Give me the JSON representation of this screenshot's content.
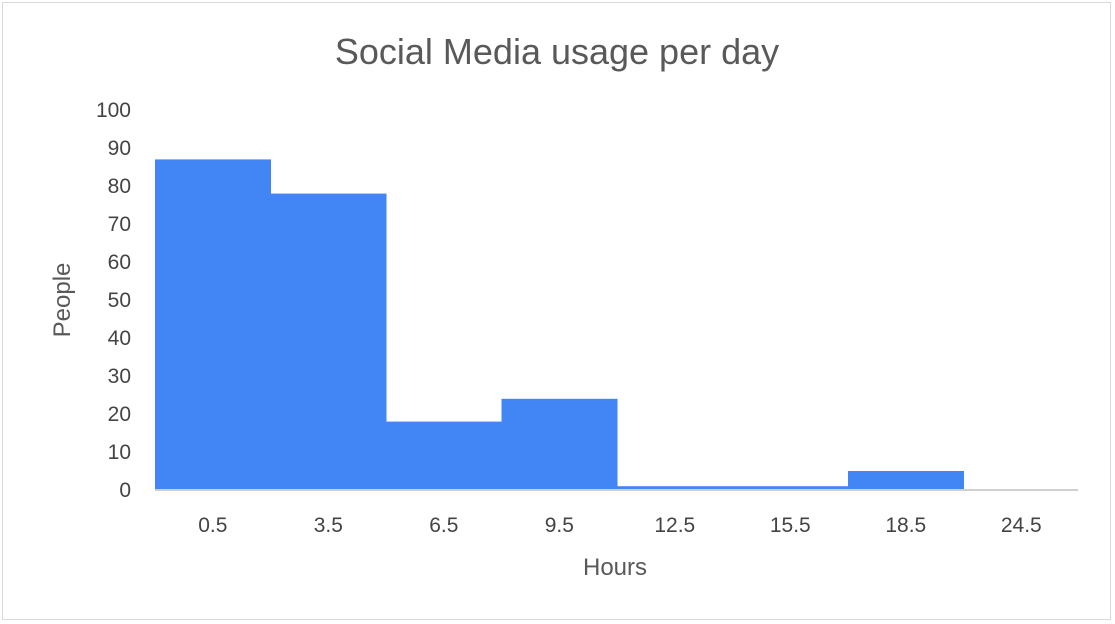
{
  "chart_data": {
    "type": "bar",
    "title": "Social Media usage per day",
    "xlabel": "Hours",
    "ylabel": "People",
    "categories": [
      "0.5",
      "3.5",
      "6.5",
      "9.5",
      "12.5",
      "15.5",
      "18.5",
      "24.5"
    ],
    "values": [
      87,
      78,
      18,
      24,
      1,
      1,
      5,
      0
    ],
    "ylim": [
      0,
      100
    ],
    "yticks": [
      0,
      10,
      20,
      30,
      40,
      50,
      60,
      70,
      80,
      90,
      100
    ],
    "grid": false,
    "legend": "none",
    "bar_gap": "none"
  },
  "colors": {
    "bar": "#4285f4",
    "axis": "#d0d0d0",
    "title": "#595959",
    "tick": "#444444"
  }
}
